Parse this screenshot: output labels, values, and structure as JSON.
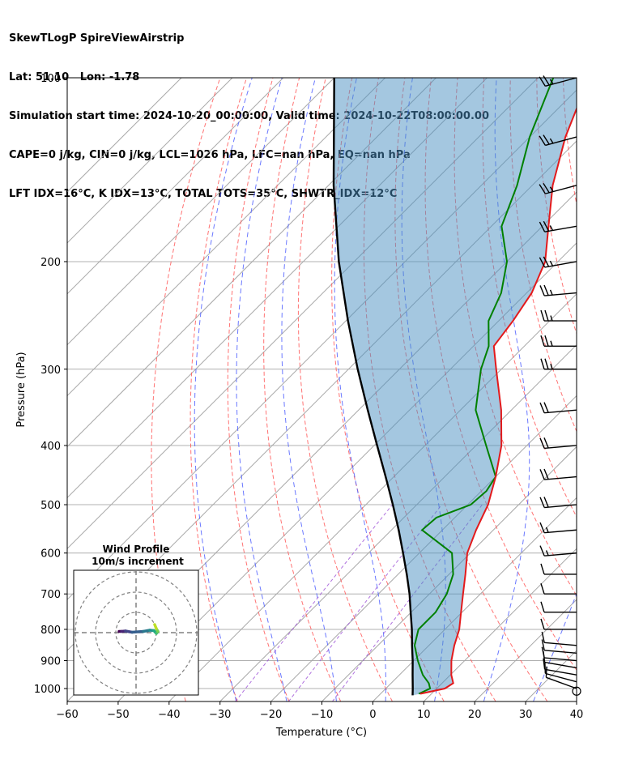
{
  "header": {
    "line1": "SkewTLogP SpireViewAirstrip",
    "line2": "Lat: 51.10   Lon: -1.78",
    "line3": "Simulation start time: 2024-10-20_00:00:00, Valid time: 2024-10-22T08:00:00.00",
    "line4": "CAPE=0 j/kg, CIN=0 j/kg, LCL=1026 hPa, LFC=nan hPa, EQ=nan hPa",
    "line5": "LFT IDX=16°C, K IDX=13°C, TOTAL TOTS=35°C, SHWTR_IDX=12°C"
  },
  "inset": {
    "title1": "Wind Profile",
    "title2": "10m/s increment"
  },
  "chart_data": {
    "type": "line",
    "title": "SkewTLogP SpireViewAirstrip",
    "xlabel": "Temperature (°C)",
    "ylabel": "Pressure (hPa)",
    "xlim": [
      -60,
      40
    ],
    "ylim": [
      1050,
      100
    ],
    "x_ticks": [
      "−60",
      "−50",
      "−40",
      "−30",
      "−20",
      "−10",
      "0",
      "10",
      "20",
      "30",
      "40"
    ],
    "x_tick_values": [
      -60,
      -50,
      -40,
      -30,
      -20,
      -10,
      0,
      10,
      20,
      30,
      40
    ],
    "y_ticks": [
      "100",
      "200",
      "300",
      "400",
      "500",
      "600",
      "700",
      "800",
      "900",
      "1000"
    ],
    "y_tick_values": [
      100,
      200,
      300,
      400,
      500,
      600,
      700,
      800,
      900,
      1000
    ],
    "y_scale": "log",
    "grid": true,
    "series": [
      {
        "color": "#e31a1c",
        "p": [
          1020,
          1000,
          980,
          950,
          900,
          850,
          800,
          750,
          700,
          650,
          600,
          550,
          500,
          450,
          400,
          350,
          300,
          275,
          250,
          225,
          200,
          175,
          150,
          125,
          100
        ],
        "t": [
          7.8,
          11.6,
          12.2,
          10.2,
          7.4,
          5.0,
          2.8,
          -0.2,
          -3.4,
          -6.8,
          -10.6,
          -13.4,
          -16.0,
          -20.0,
          -25.0,
          -32.0,
          -41.0,
          -46.0,
          -47.2,
          -49.0,
          -52.5,
          -58.8,
          -66.0,
          -73.0,
          -80.0
        ]
      },
      {
        "color": "#008000",
        "p": [
          1020,
          1000,
          980,
          950,
          900,
          850,
          800,
          750,
          700,
          650,
          600,
          550,
          525,
          500,
          475,
          450,
          400,
          350,
          300,
          275,
          250,
          225,
          200,
          175,
          150,
          125,
          100
        ],
        "t": [
          7.5,
          8.7,
          7.4,
          4.6,
          0.8,
          -2.8,
          -5.2,
          -5.2,
          -6.6,
          -9.2,
          -13.6,
          -24.0,
          -23.6,
          -19.4,
          -19.0,
          -20.0,
          -28.0,
          -37.0,
          -44.0,
          -47.0,
          -52.0,
          -55.0,
          -60.0,
          -68.0,
          -73.0,
          -80.0,
          -87.0
        ]
      },
      {
        "color": "#000000",
        "p": [
          1026,
          1000,
          950,
          900,
          850,
          800,
          750,
          700,
          650,
          600,
          550,
          500,
          450,
          400,
          350,
          300,
          250,
          200,
          150,
          100
        ],
        "t": [
          6.6,
          5.3,
          2.6,
          -0.2,
          -3.3,
          -6.5,
          -10.1,
          -13.9,
          -18.3,
          -23.2,
          -28.6,
          -34.7,
          -41.6,
          -49.4,
          -58.2,
          -68.2,
          -79.6,
          -93.0,
          -109.0,
          -130.0
        ]
      }
    ],
    "wind_barbs": {
      "p": [
        1000,
        975,
        950,
        925,
        900,
        875,
        850,
        800,
        750,
        700,
        650,
        600,
        550,
        500,
        450,
        400,
        350,
        300,
        275,
        250,
        225,
        200,
        175,
        150,
        125,
        100
      ],
      "speed_kt": [
        10,
        10,
        10,
        10,
        10,
        10,
        10,
        10,
        10,
        10,
        10,
        15,
        15,
        20,
        20,
        20,
        20,
        25,
        25,
        25,
        25,
        25,
        25,
        25,
        25,
        25
      ],
      "direction_deg": [
        290,
        285,
        280,
        280,
        275,
        275,
        275,
        270,
        270,
        270,
        270,
        265,
        265,
        265,
        265,
        265,
        265,
        270,
        270,
        270,
        265,
        260,
        260,
        255,
        255,
        255
      ]
    },
    "hodograph": {
      "u": [
        -4.2,
        -3.6,
        -2.6,
        -1.0,
        1.8,
        3.4,
        4.4,
        5.0,
        5.4,
        5.0,
        4.6
      ],
      "v": [
        0.3,
        0.3,
        0.4,
        0.1,
        0.3,
        0.6,
        0.5,
        -0.2,
        0.3,
        1.0,
        2.0
      ],
      "rings_ms": [
        10,
        20,
        30
      ],
      "colormap": "viridis"
    }
  }
}
